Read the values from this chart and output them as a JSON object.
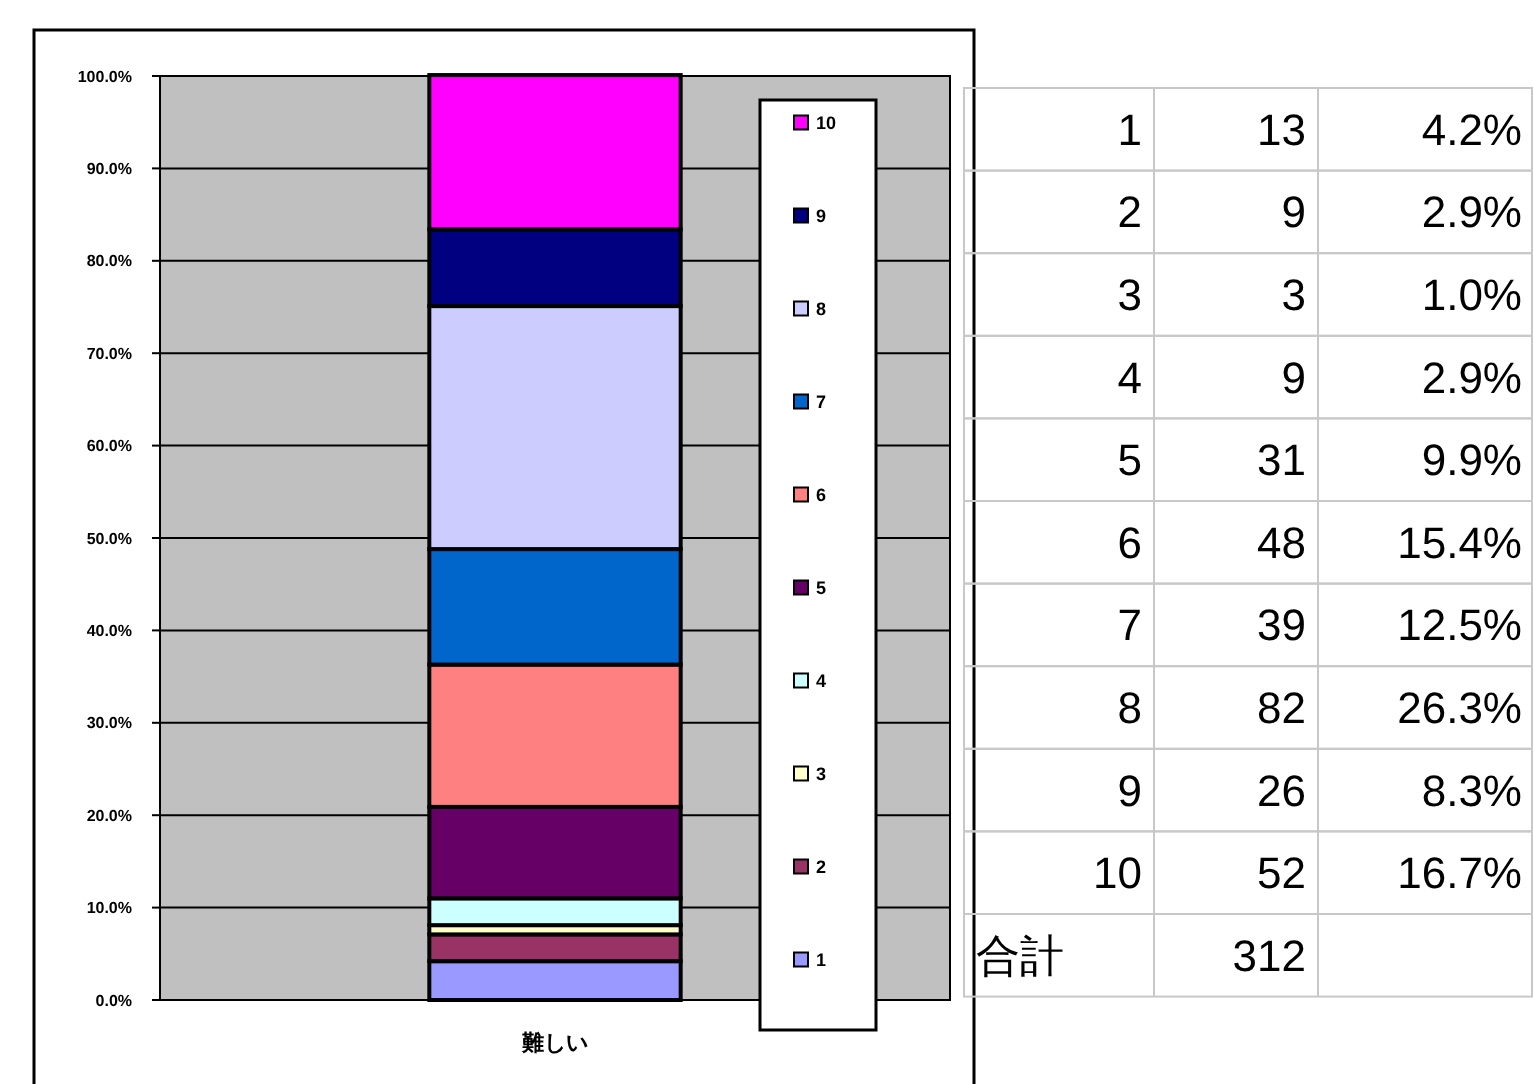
{
  "chart_data": {
    "type": "bar",
    "stacked": true,
    "categories": [
      "難しい"
    ],
    "series": [
      {
        "name": "1",
        "color": "#9999ff",
        "values": [
          4.2
        ]
      },
      {
        "name": "2",
        "color": "#993366",
        "values": [
          2.9
        ]
      },
      {
        "name": "3",
        "color": "#ffffcc",
        "values": [
          1.0
        ]
      },
      {
        "name": "4",
        "color": "#ccffff",
        "values": [
          2.9
        ]
      },
      {
        "name": "5",
        "color": "#660066",
        "values": [
          9.9
        ]
      },
      {
        "name": "6",
        "color": "#ff8080",
        "values": [
          15.4
        ]
      },
      {
        "name": "7",
        "color": "#0066cc",
        "values": [
          12.5
        ]
      },
      {
        "name": "8",
        "color": "#ccccff",
        "values": [
          26.3
        ]
      },
      {
        "name": "9",
        "color": "#000080",
        "values": [
          8.3
        ]
      },
      {
        "name": "10",
        "color": "#ff00ff",
        "values": [
          16.7
        ]
      }
    ],
    "ylim": [
      0,
      100
    ],
    "yticks": [
      {
        "value": 0,
        "label": "0.0%"
      },
      {
        "value": 10,
        "label": "10.0%"
      },
      {
        "value": 20,
        "label": "20.0%"
      },
      {
        "value": 30,
        "label": "30.0%"
      },
      {
        "value": 40,
        "label": "40.0%"
      },
      {
        "value": 50,
        "label": "50.0%"
      },
      {
        "value": 60,
        "label": "60.0%"
      },
      {
        "value": 70,
        "label": "70.0%"
      },
      {
        "value": 80,
        "label": "80.0%"
      },
      {
        "value": 90,
        "label": "90.0%"
      },
      {
        "value": 100,
        "label": "100.0%"
      }
    ],
    "grid": "y",
    "legend": "right",
    "annotations": [
      "13",
      "9",
      "3",
      "9",
      "31",
      "48",
      "39",
      "82",
      "26",
      "52",
      "4.2%",
      "2.9%",
      "1.0%",
      "2.9%",
      "9.9%",
      "15.4%",
      "12.5%",
      "26.3%",
      "8.3%",
      "16.7%",
      "合計",
      "312"
    ]
  }
}
